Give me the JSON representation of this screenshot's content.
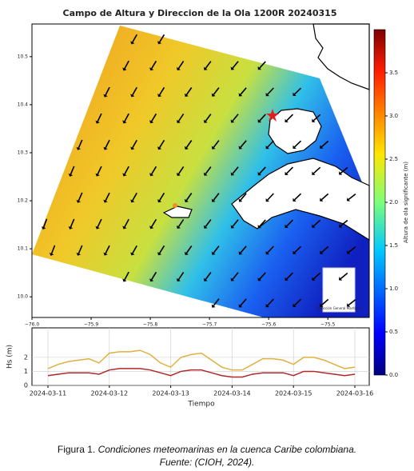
{
  "chart_data": [
    {
      "type": "map",
      "title": "Campo de Altura y Direccion de la Ola 1200R 20240315",
      "xlim": [
        -76.0,
        -75.43
      ],
      "ylim": [
        9.957,
        10.568
      ],
      "xticks": [
        {
          "value": -76.0,
          "label": "−76.0"
        },
        {
          "value": -75.9,
          "label": "−75.9"
        },
        {
          "value": -75.8,
          "label": "−75.8"
        },
        {
          "value": -75.7,
          "label": "−75.7"
        },
        {
          "value": -75.6,
          "label": "−75.6"
        },
        {
          "value": -75.5,
          "label": "−75.5"
        }
      ],
      "yticks": [
        {
          "value": 10.0,
          "label": "10.0"
        },
        10.1,
        10.2,
        10.3,
        10.4,
        10.5
      ],
      "colorbar_label": "Altura de ola significante (m)",
      "clim": [
        0,
        4.0
      ],
      "cticks": [
        {
          "value": 0,
          "label": "0.0"
        },
        {
          "value": 0.5,
          "label": "0.5"
        },
        {
          "value": 1,
          "label": "1.0"
        },
        {
          "value": 1.5,
          "label": "1.5"
        },
        {
          "value": 2,
          "label": "2.0"
        },
        {
          "value": 2.5,
          "label": "2.5"
        },
        {
          "value": 3,
          "label": "3.0"
        },
        {
          "value": 3.5,
          "label": "3.5"
        }
      ],
      "logo_text": "Dirección General Marítima"
    },
    {
      "type": "line",
      "ylabel": "Hs (m)",
      "xlabel": "Tiempo",
      "xlim": [
        "2024-03-11",
        "2024-03-16"
      ],
      "xticks": [
        "2024-03-11",
        "2024-03-12",
        "2024-03-13",
        "2024-03-14",
        "2024-03-15",
        "2024-03-16"
      ],
      "ylim": [
        0,
        4.1
      ],
      "yticks": [
        0,
        1,
        2
      ],
      "grid": true,
      "series": [
        {
          "color": "#e0b040",
          "values": [
            1.2,
            1.5,
            1.7,
            1.8,
            1.9,
            1.6,
            2.3,
            2.4,
            2.4,
            2.5,
            2.2,
            1.6,
            1.3,
            2.0,
            2.2,
            2.3,
            1.8,
            1.3,
            1.1,
            1.1,
            1.5,
            1.9,
            1.9,
            1.8,
            1.5,
            2.0,
            2.0,
            1.8,
            1.5,
            1.2,
            1.3
          ]
        },
        {
          "color": "#b02828",
          "values": [
            0.7,
            0.8,
            0.9,
            0.9,
            0.9,
            0.8,
            1.1,
            1.2,
            1.2,
            1.2,
            1.1,
            0.9,
            0.7,
            1.0,
            1.1,
            1.1,
            0.9,
            0.7,
            0.6,
            0.6,
            0.8,
            0.9,
            0.9,
            0.9,
            0.7,
            1.0,
            1.0,
            0.9,
            0.8,
            0.7,
            0.8
          ]
        }
      ]
    }
  ],
  "caption": {
    "label": "Figura 1.",
    "text": "Condiciones meteomarinas en la cuenca Caribe colombiana.",
    "source": "Fuente: (CIOH, 2024)."
  }
}
